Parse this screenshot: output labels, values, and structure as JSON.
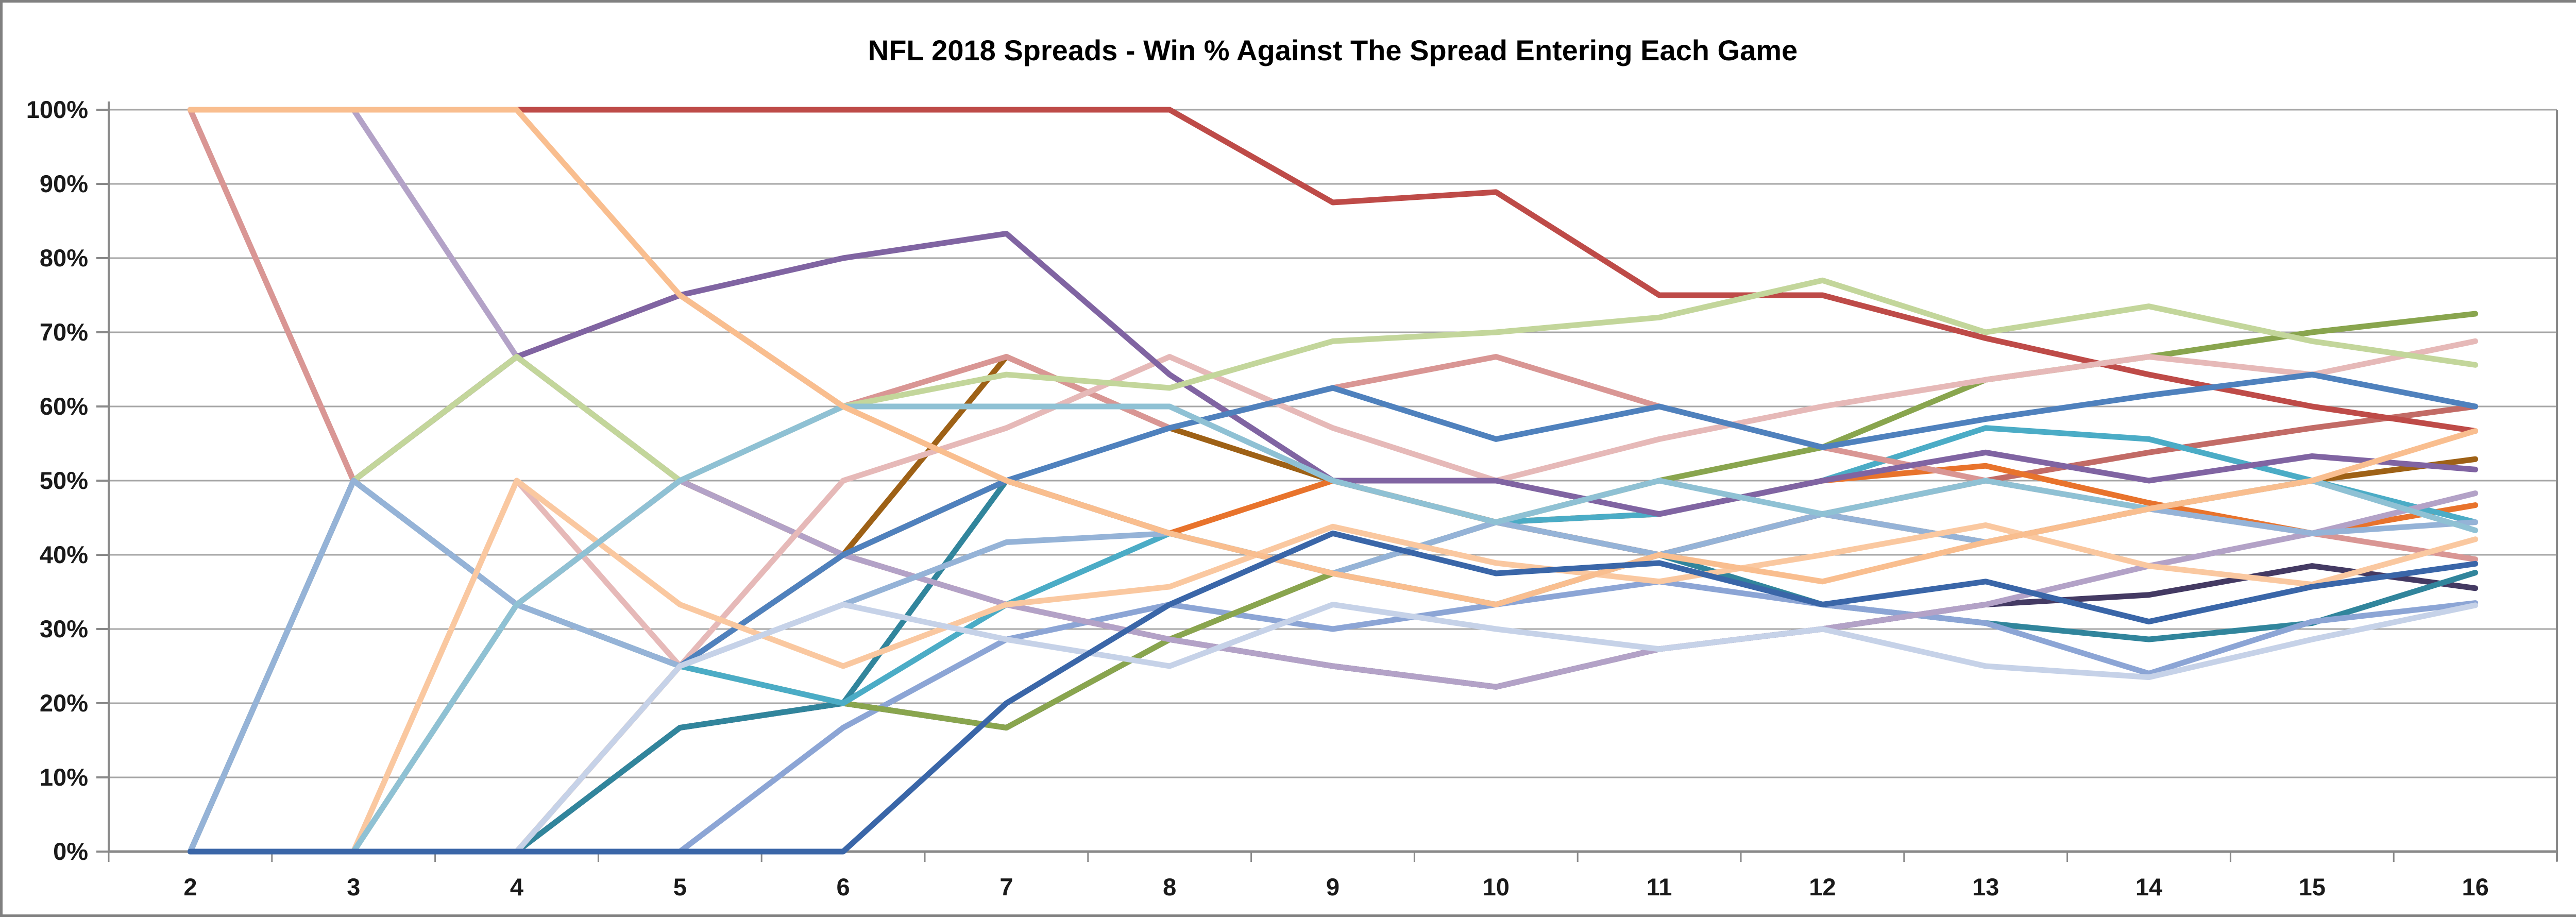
{
  "title": "NFL 2018 Spreads - Win % Against The Spread Entering Each Game",
  "chart_data": {
    "type": "line",
    "title": "NFL 2018 Spreads - Win % Against The Spread Entering Each Game",
    "xlabel": "",
    "ylabel": "",
    "x": [
      2,
      3,
      4,
      5,
      6,
      7,
      8,
      9,
      10,
      11,
      12,
      13,
      14,
      15,
      16
    ],
    "x_tick_labels": [
      "2",
      "3",
      "4",
      "5",
      "6",
      "7",
      "8",
      "9",
      "10",
      "11",
      "12",
      "13",
      "14",
      "15",
      "16"
    ],
    "y_tick_labels": [
      "0%",
      "10%",
      "20%",
      "30%",
      "40%",
      "50%",
      "60%",
      "70%",
      "80%",
      "90%",
      "100%"
    ],
    "ylim": [
      0,
      100
    ],
    "y_step": 10,
    "grid": true,
    "legend": false,
    "gridline_color": "#A6A6A6",
    "axis_color": "#898989",
    "title_color": "#000000",
    "series": [
      {
        "name": "salmon-dark",
        "color": "#C26B66",
        "values": [
          100,
          50,
          33.3,
          50,
          40,
          33.3,
          28.6,
          37.5,
          44.4,
          40,
          45.5,
          50,
          53.8,
          57.1,
          60
        ]
      },
      {
        "name": "brown",
        "color": "#9E6116",
        "values": [
          0,
          50,
          66.7,
          50,
          40,
          66.7,
          57.1,
          50,
          44.4,
          40,
          45.5,
          41.7,
          46.2,
          50,
          52.9
        ]
      },
      {
        "name": "indigo",
        "color": "#443A63",
        "values": [
          0,
          0,
          0,
          16.7,
          20,
          16.7,
          28.6,
          25,
          22.2,
          27.3,
          30,
          33.3,
          34.6,
          38.5,
          35.5
        ]
      },
      {
        "name": "teal",
        "color": "#31859C",
        "values": [
          0,
          0,
          0,
          16.7,
          20,
          50,
          42.9,
          37.5,
          33.3,
          40,
          33.3,
          30.8,
          28.6,
          30.8,
          37.6
        ]
      },
      {
        "name": "cornflower",
        "color": "#8CA5D5",
        "values": [
          0,
          0,
          0,
          0,
          16.7,
          28.6,
          33.3,
          30,
          33.3,
          36.4,
          33.3,
          30.8,
          24,
          31,
          33.5
        ]
      },
      {
        "name": "orange",
        "color": "#E8732C",
        "values": [
          0,
          0,
          0,
          25,
          40,
          50,
          42.9,
          50,
          44.4,
          45.5,
          50,
          52,
          47,
          42.9,
          46.7
        ]
      },
      {
        "name": "med-green",
        "color": "#89A54E",
        "values": [
          0,
          0,
          33.3,
          25,
          20,
          16.7,
          28.6,
          37.5,
          44.4,
          50,
          54.5,
          63.6,
          66.7,
          70,
          72.5
        ]
      },
      {
        "name": "cyan",
        "color": "#4BACC6",
        "values": [
          0,
          50,
          33.3,
          25,
          20,
          33.3,
          42.9,
          37.5,
          44.4,
          45.5,
          50,
          57.1,
          55.6,
          50,
          44.4
        ]
      },
      {
        "name": "brick-red",
        "color": "#BE4B48",
        "values": [
          100,
          100,
          100,
          100,
          100,
          100,
          100,
          87.5,
          88.9,
          75,
          75,
          69.2,
          64.3,
          60,
          56.7
        ]
      },
      {
        "name": "violet",
        "color": "#B3A2C7",
        "values": [
          100,
          100,
          66.7,
          50,
          40,
          33.3,
          28.6,
          25,
          22.2,
          27.3,
          30,
          33.3,
          38.5,
          42.9,
          48.3
        ]
      },
      {
        "name": "salmon-rose",
        "color": "#D99694",
        "values": [
          100,
          50,
          66.7,
          75,
          60,
          66.7,
          57.1,
          62.5,
          66.7,
          60,
          54.5,
          50,
          46.2,
          42.9,
          39.4
        ]
      },
      {
        "name": "dusty-rose",
        "color": "#E6B9B8",
        "values": [
          0,
          0,
          50,
          25,
          50,
          57.1,
          66.7,
          57.1,
          50,
          55.6,
          60,
          63.6,
          66.7,
          64.3,
          68.8
        ]
      },
      {
        "name": "med-purple",
        "color": "#8064A2",
        "values": [
          0,
          50,
          66.7,
          75,
          80,
          83.3,
          64.3,
          50,
          50,
          45.5,
          50,
          53.8,
          50,
          53.3,
          51.5
        ]
      },
      {
        "name": "pale-green",
        "color": "#C3D69B",
        "values": [
          0,
          50,
          66.7,
          50,
          60,
          64.3,
          62.5,
          68.8,
          70,
          72,
          77,
          70,
          73.5,
          68.8,
          65.6
        ]
      },
      {
        "name": "steel-blue",
        "color": "#4F81BD",
        "values": [
          0,
          50,
          33.3,
          25,
          40,
          50,
          57.1,
          62.5,
          55.6,
          60,
          54.5,
          58.3,
          61.5,
          64.3,
          60
        ]
      },
      {
        "name": "light-steel",
        "color": "#95B3D7",
        "values": [
          0,
          50,
          33.3,
          25,
          33.3,
          41.7,
          42.9,
          37.5,
          44.4,
          40,
          45.5,
          41.7,
          46.2,
          42.9,
          44.4
        ]
      },
      {
        "name": "light-peach",
        "color": "#FAC8A0",
        "values": [
          0,
          0,
          50,
          33.3,
          25,
          33.3,
          35.7,
          43.8,
          38.9,
          36.4,
          40,
          44,
          38.5,
          36,
          42.1
        ]
      },
      {
        "name": "periwinkle",
        "color": "#C6D2E8",
        "values": [
          0,
          0,
          0,
          25,
          33.3,
          28.6,
          25,
          33.3,
          30,
          27.3,
          30,
          25,
          23.5,
          28.6,
          33.2
        ]
      },
      {
        "name": "sky-blue",
        "color": "#8FC1D4",
        "values": [
          0,
          0,
          33.3,
          50,
          60,
          60,
          60,
          50,
          44.4,
          50,
          45.5,
          50,
          46.2,
          50,
          43.3
        ]
      },
      {
        "name": "peach",
        "color": "#F9BE8F",
        "values": [
          100,
          100,
          100,
          75,
          60,
          50,
          42.9,
          37.5,
          33.3,
          40,
          36.4,
          41.7,
          46.2,
          50,
          56.7
        ]
      },
      {
        "name": "royal-blue",
        "color": "#3A66A8",
        "values": [
          0,
          0,
          0,
          0,
          0,
          20,
          33.3,
          42.9,
          37.5,
          38.9,
          33.3,
          36.4,
          31,
          35.7,
          38.8
        ]
      }
    ]
  }
}
